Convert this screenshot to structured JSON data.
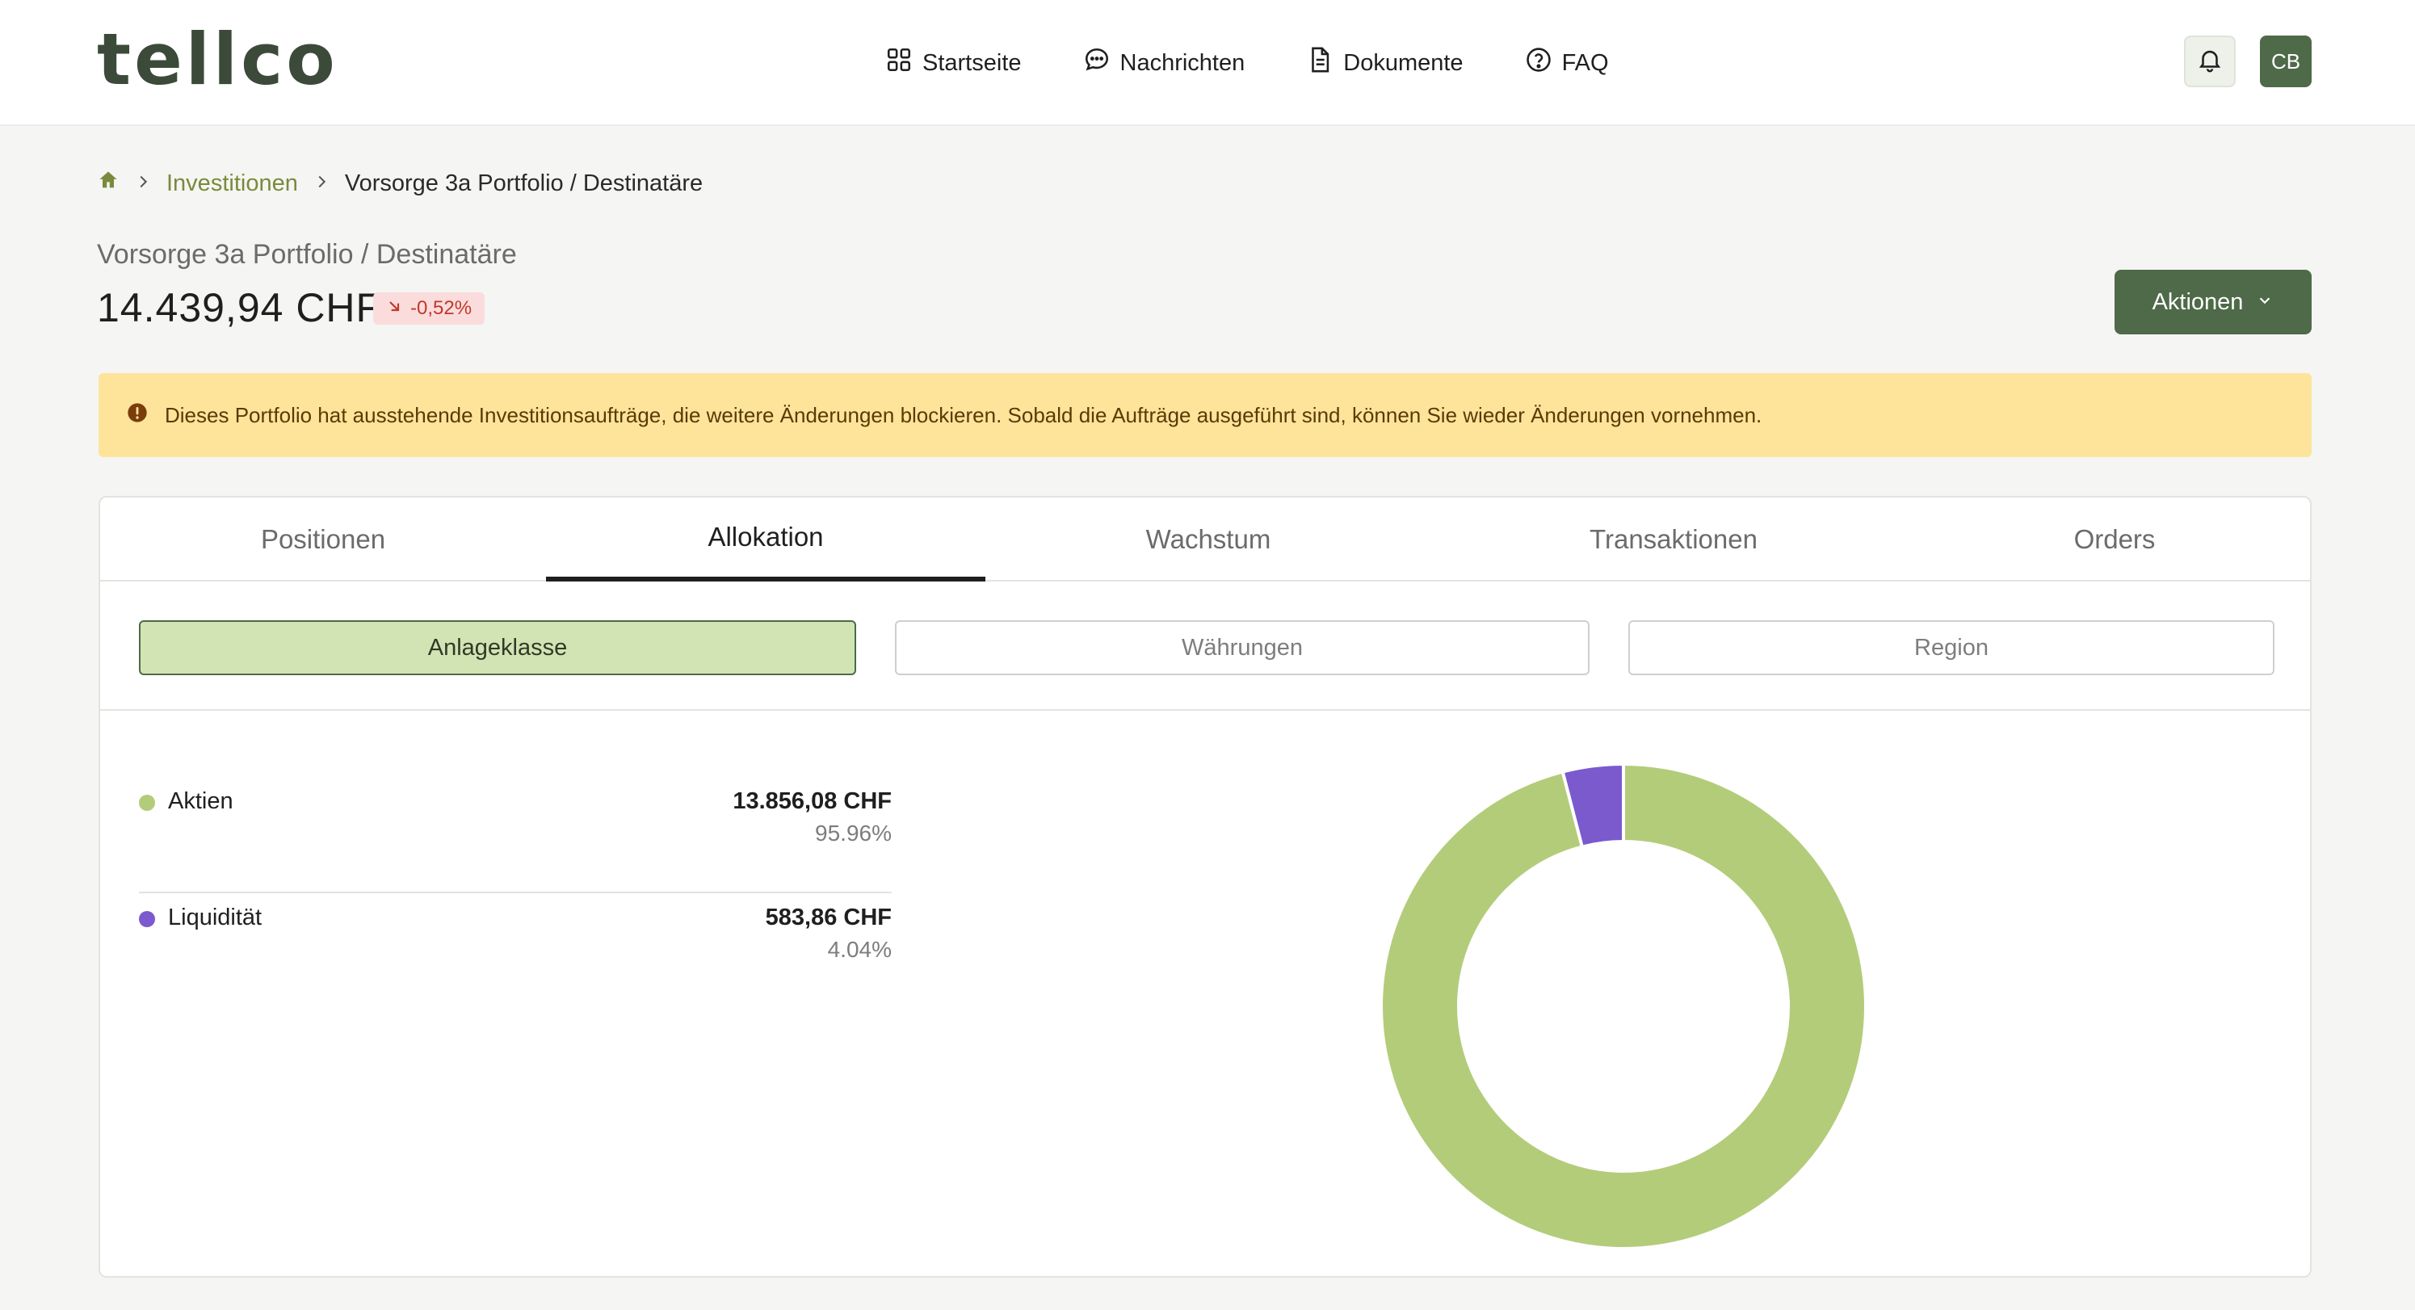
{
  "header": {
    "logo": "tellco",
    "nav": [
      {
        "label": "Startseite",
        "icon": "grid-icon"
      },
      {
        "label": "Nachrichten",
        "icon": "chat-bubble-icon"
      },
      {
        "label": "Dokumente",
        "icon": "document-icon"
      },
      {
        "label": "FAQ",
        "icon": "help-circle-icon"
      }
    ],
    "avatar_initials": "CB"
  },
  "breadcrumb": {
    "home_icon": "home-icon",
    "items": [
      "Investitionen",
      "Vorsorge 3a Portfolio / Destinatäre"
    ]
  },
  "portfolio": {
    "title": "Vorsorge 3a Portfolio / Destinatäre",
    "balance": "14.439,94 CHF",
    "change": "-0,52%",
    "change_icon": "arrow-down-right-icon",
    "actions_label": "Aktionen"
  },
  "warning": {
    "text": "Dieses Portfolio hat ausstehende Investitionsaufträge, die weitere Änderungen blockieren. Sobald die Aufträge ausgeführt sind, können Sie wieder Änderungen vornehmen."
  },
  "tabs": [
    "Positionen",
    "Allokation",
    "Wachstum",
    "Transaktionen",
    "Orders"
  ],
  "active_tab": "Allokation",
  "segments": [
    "Anlageklasse",
    "Währungen",
    "Region"
  ],
  "active_segment": "Anlageklasse",
  "colors": {
    "brand": "#4e6a48",
    "aktien": "#b3cc7a",
    "liquiditaet": "#7a5acd",
    "warning_bg": "#fde49a",
    "negative": "#c0392b"
  },
  "chart_data": {
    "type": "pie",
    "variant": "donut",
    "categories": [
      "Aktien",
      "Liquidität"
    ],
    "values": [
      95.96,
      4.04
    ],
    "amounts": [
      "13.856,08 CHF",
      "583,86 CHF"
    ],
    "percent_labels": [
      "95.96%",
      "4.04%"
    ],
    "colors": [
      "#b3cc7a",
      "#7a5acd"
    ]
  }
}
